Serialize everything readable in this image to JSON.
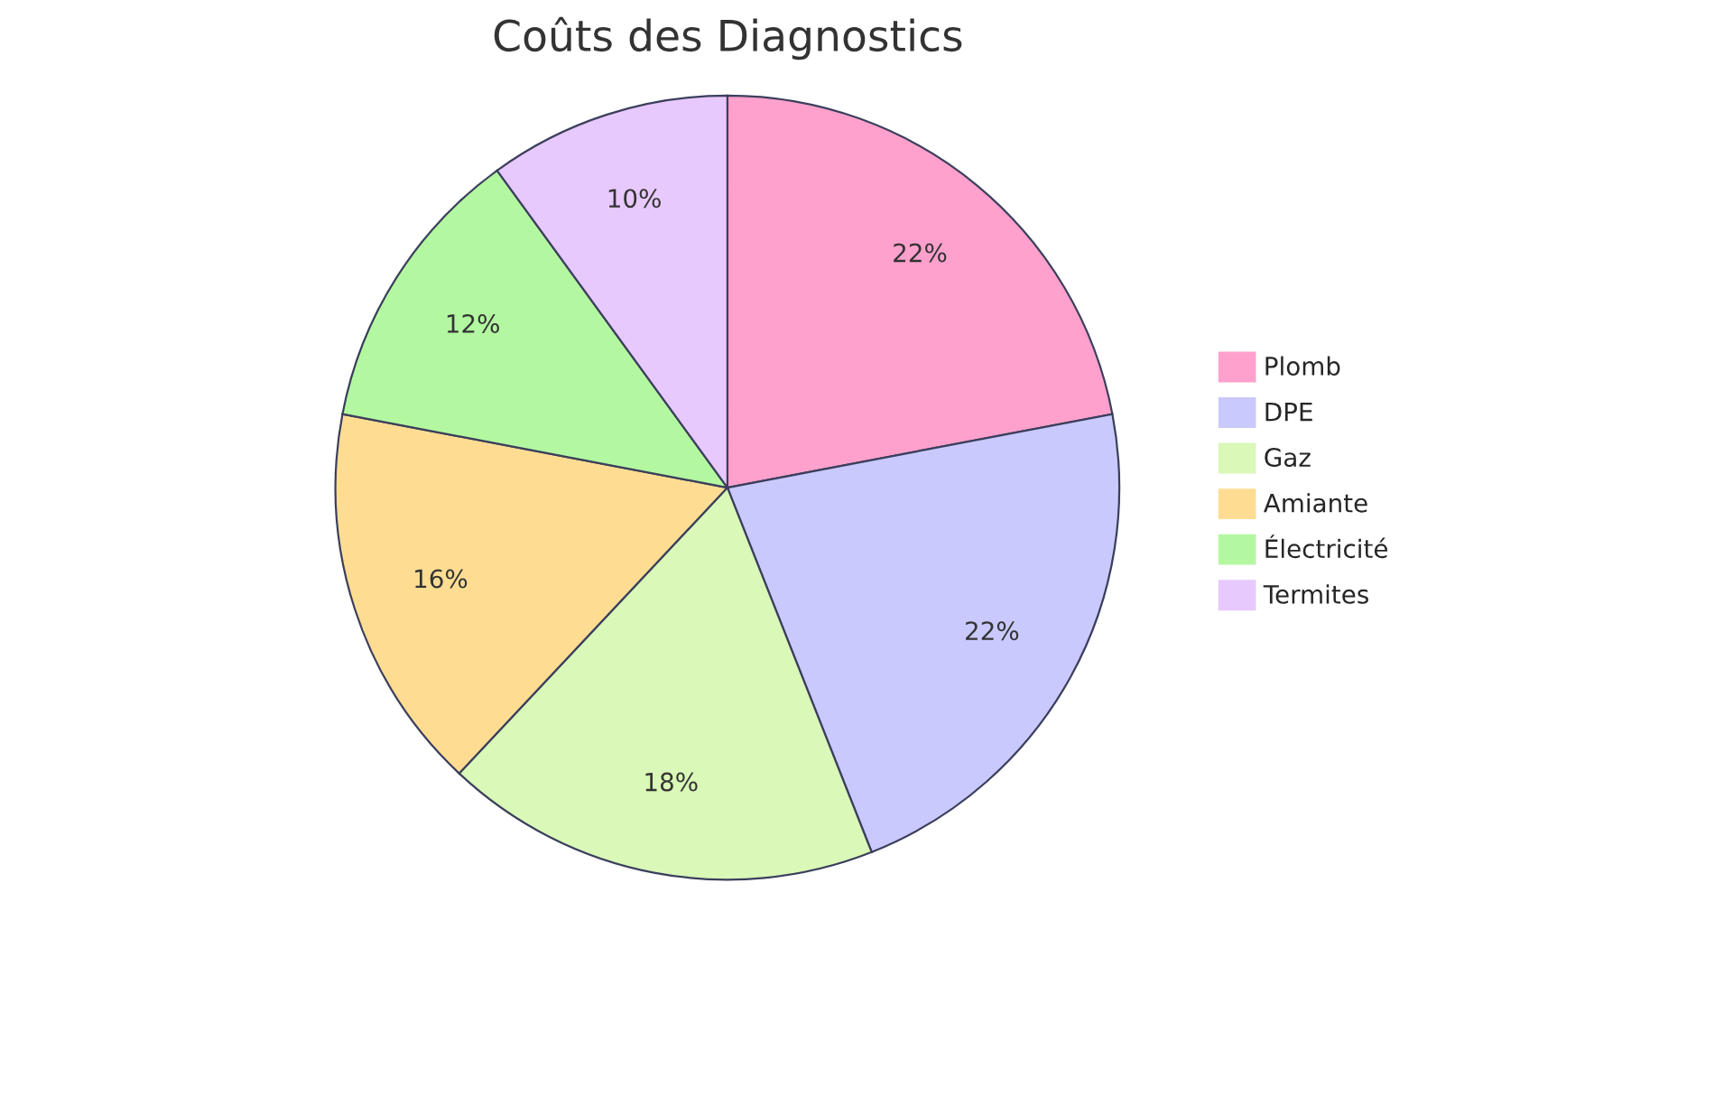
{
  "chart_data": {
    "type": "pie",
    "title": "Coûts des Diagnostics",
    "categories": [
      "Plomb",
      "DPE",
      "Gaz",
      "Amiante",
      "Électricité",
      "Termites"
    ],
    "values": [
      22,
      22,
      18,
      16,
      12,
      10
    ],
    "value_labels": [
      "22%",
      "22%",
      "18%",
      "16%",
      "12%",
      "10%"
    ],
    "colors": [
      "#ffa1cc",
      "#c9c9fe",
      "#daf8b8",
      "#fedd93",
      "#b3f8a1",
      "#e8c9fd"
    ],
    "legend": "right"
  }
}
